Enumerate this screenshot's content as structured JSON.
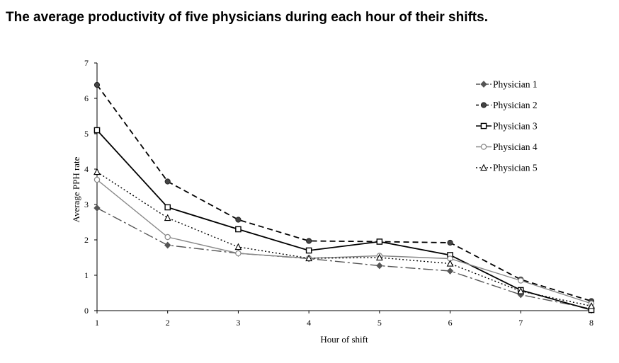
{
  "chart_data": {
    "type": "line",
    "title": "The average productivity of five physicians during each hour of their shifts.",
    "xlabel": "Hour of shift",
    "ylabel": "Average PPH rate",
    "x": [
      1,
      2,
      3,
      4,
      5,
      6,
      7,
      8
    ],
    "xlim": [
      1,
      8
    ],
    "ylim": [
      0,
      7
    ],
    "yticks": [
      0,
      1,
      2,
      3,
      4,
      5,
      6,
      7
    ],
    "grid": false,
    "legend_position": "top-right",
    "series": [
      {
        "name": "Physician 1",
        "values": [
          2.9,
          1.85,
          1.62,
          1.47,
          1.27,
          1.12,
          0.45,
          0.05
        ],
        "color": "#555555",
        "dash": "14,4,3,4",
        "marker": "diamond"
      },
      {
        "name": "Physician 2",
        "values": [
          6.38,
          3.65,
          2.57,
          1.97,
          1.95,
          1.92,
          0.88,
          0.27
        ],
        "color": "#000000",
        "dash": "8,5",
        "marker": "circle-filled"
      },
      {
        "name": "Physician 3",
        "values": [
          5.1,
          2.92,
          2.3,
          1.7,
          1.95,
          1.57,
          0.58,
          0.02
        ],
        "color": "#000000",
        "dash": "",
        "marker": "square-open"
      },
      {
        "name": "Physician 4",
        "values": [
          3.7,
          2.08,
          1.62,
          1.48,
          1.55,
          1.47,
          0.85,
          0.2
        ],
        "color": "#888888",
        "dash": "",
        "marker": "circle-open"
      },
      {
        "name": "Physician 5",
        "values": [
          3.92,
          2.62,
          1.8,
          1.48,
          1.5,
          1.33,
          0.55,
          0.13
        ],
        "color": "#000000",
        "dash": "2,3",
        "marker": "triangle-open"
      }
    ]
  }
}
